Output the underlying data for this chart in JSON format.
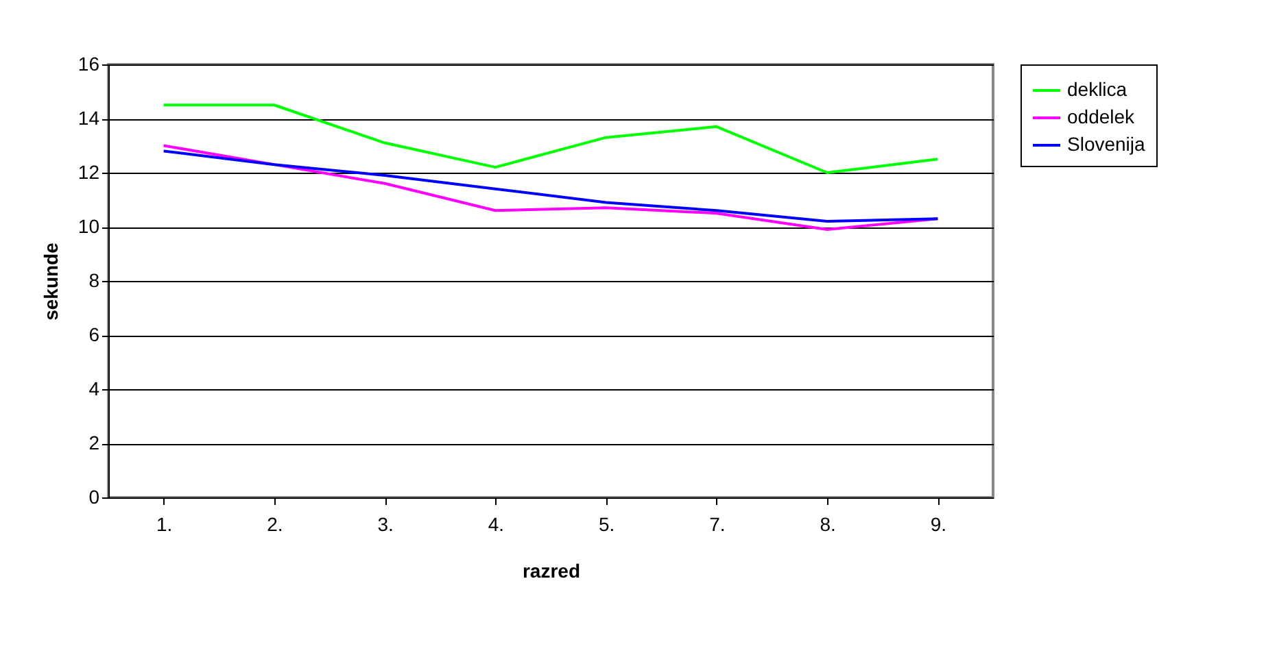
{
  "chart_data": {
    "type": "line",
    "xlabel": "razred",
    "ylabel": "sekunde",
    "categories": [
      "1.",
      "2.",
      "3.",
      "4.",
      "5.",
      "7.",
      "8.",
      "9."
    ],
    "series": [
      {
        "name": "deklica",
        "color": "#00ff00",
        "values": [
          14.5,
          14.5,
          13.1,
          12.2,
          13.3,
          13.7,
          12.0,
          12.5
        ]
      },
      {
        "name": "oddelek",
        "color": "#ff00ff",
        "values": [
          13.0,
          12.3,
          11.6,
          10.6,
          10.7,
          10.5,
          9.9,
          10.3
        ]
      },
      {
        "name": "Slovenija",
        "color": "#0000ff",
        "values": [
          12.8,
          12.3,
          11.9,
          11.4,
          10.9,
          10.6,
          10.2,
          10.3
        ]
      }
    ],
    "ylim": [
      0,
      16
    ],
    "yticks": [
      0,
      2,
      4,
      6,
      8,
      10,
      12,
      14,
      16
    ],
    "grid": "y",
    "legend": "right",
    "marker": "none",
    "line_style": "solid"
  }
}
